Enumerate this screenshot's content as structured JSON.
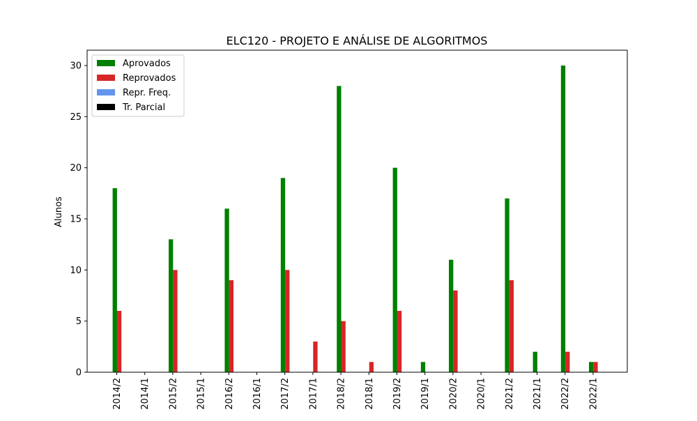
{
  "chart_data": {
    "type": "bar",
    "title": "ELC120 - PROJETO E ANÁLISE DE ALGORITMOS",
    "xlabel": "",
    "ylabel": "Alunos",
    "ylim": [
      0,
      31.5
    ],
    "yticks": [
      0,
      5,
      10,
      15,
      20,
      25,
      30
    ],
    "grid": false,
    "legend_position": "top-left",
    "categories": [
      "2014/2",
      "2014/1",
      "2015/2",
      "2015/1",
      "2016/2",
      "2016/1",
      "2017/2",
      "2017/1",
      "2018/2",
      "2018/1",
      "2019/2",
      "2019/1",
      "2020/2",
      "2020/1",
      "2021/2",
      "2021/1",
      "2022/2",
      "2022/1"
    ],
    "series": [
      {
        "name": "Aprovados",
        "color": "#008000",
        "values": [
          18,
          0,
          13,
          0,
          16,
          0,
          19,
          0,
          28,
          0,
          20,
          1,
          11,
          0,
          17,
          2,
          30,
          1
        ]
      },
      {
        "name": "Reprovados",
        "color": "#d62728",
        "values": [
          6,
          0,
          10,
          0,
          9,
          0,
          10,
          3,
          5,
          1,
          6,
          0,
          8,
          0,
          9,
          0,
          2,
          1
        ]
      },
      {
        "name": "Repr. Freq.",
        "color": "#6495ed",
        "values": [
          0,
          0,
          0,
          0,
          0,
          0,
          0,
          0,
          0,
          0,
          0,
          0,
          0,
          0,
          0,
          0,
          0,
          0
        ]
      },
      {
        "name": "Tr. Parcial",
        "color": "#000000",
        "values": [
          0,
          0,
          0,
          0,
          0,
          0,
          0,
          0,
          0,
          0,
          0,
          0,
          0,
          0,
          0,
          0,
          0,
          0
        ]
      }
    ]
  }
}
